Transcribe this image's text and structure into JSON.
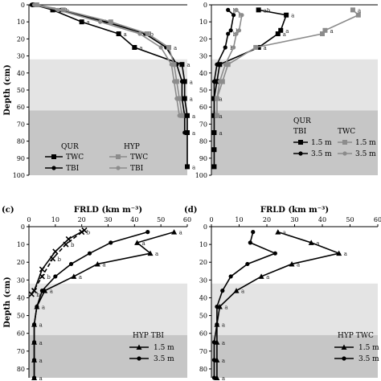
{
  "chart_data": [
    {
      "panel": "",
      "type": "line",
      "ylabel": "Depth (cm)",
      "xlabel": "",
      "ylim": [
        0,
        100
      ],
      "xlim": [
        0,
        60
      ],
      "yticks": [
        "0",
        "10",
        "20",
        "30",
        "40",
        "50",
        "60",
        "70",
        "80",
        "90",
        "100"
      ],
      "xticks": [],
      "bands": [
        {
          "from": 32,
          "to": 62,
          "color": "#e4e4e4"
        },
        {
          "from": 62,
          "to": 100,
          "color": "#c6c6c6"
        }
      ],
      "legend_titles": [
        "QUR",
        "HYP"
      ],
      "series": [
        {
          "name": "TWC",
          "color": "#000000",
          "marker": "square",
          "x": [
            2,
            9,
            20,
            34,
            40,
            58,
            59,
            59,
            60,
            60,
            60
          ],
          "y": [
            0,
            3,
            10,
            17,
            25,
            35,
            45,
            55,
            65,
            75,
            95
          ],
          "labels": [
            "",
            "a",
            "a",
            "a",
            "a",
            "a",
            "a",
            "a",
            "a",
            "a",
            "a"
          ]
        },
        {
          "name": "TBI",
          "color": "#000000",
          "marker": "dot",
          "x": [
            1,
            12,
            29,
            44,
            52,
            56,
            58,
            58,
            59,
            59
          ],
          "y": [
            0,
            3,
            10,
            17,
            25,
            35,
            45,
            55,
            65,
            75
          ],
          "labels": [
            "",
            "b",
            "a",
            "b",
            "",
            "",
            "",
            "",
            "",
            ""
          ]
        },
        {
          "name": "TWC",
          "color": "#8c8c8c",
          "marker": "square",
          "x": [
            3,
            13,
            31,
            45,
            53,
            55,
            56,
            57,
            58
          ],
          "y": [
            0,
            3,
            10,
            17,
            25,
            35,
            45,
            55,
            65
          ],
          "labels": [
            "",
            "",
            "",
            "",
            "a",
            "",
            "",
            "",
            ""
          ]
        },
        {
          "name": "TBI",
          "color": "#8c8c8c",
          "marker": "dot",
          "x": [
            2,
            11,
            27,
            42,
            50,
            54,
            55,
            56,
            57
          ],
          "y": [
            0,
            3,
            10,
            17,
            25,
            35,
            45,
            55,
            65
          ],
          "labels": [
            "",
            "",
            "",
            "",
            "",
            "",
            "",
            "",
            ""
          ]
        }
      ]
    },
    {
      "panel": "",
      "type": "line",
      "ylabel": "",
      "xlabel": "",
      "ylim": [
        0,
        100
      ],
      "xlim": [
        0,
        60
      ],
      "yticks": [
        "0",
        "10",
        "20",
        "30",
        "40",
        "50",
        "60",
        "70",
        "80",
        "90",
        "100"
      ],
      "xticks": [],
      "bands": [
        {
          "from": 32,
          "to": 62,
          "color": "#e4e4e4"
        },
        {
          "from": 62,
          "to": 100,
          "color": "#c6c6c6"
        }
      ],
      "legend_titles": [
        "QUR",
        "TBI",
        "TWC"
      ],
      "series": [
        {
          "name": "1.5 m",
          "color": "#000000",
          "marker": "square",
          "x": [
            17,
            27,
            25,
            24,
            17,
            3,
            2,
            1,
            1,
            1,
            1,
            1
          ],
          "y": [
            3,
            6,
            15,
            17,
            25,
            35,
            45,
            55,
            65,
            75,
            85,
            95
          ],
          "labels": [
            "ab",
            "a",
            "a",
            "a",
            "a",
            "a",
            "a",
            "a",
            "a",
            "a",
            "",
            ""
          ]
        },
        {
          "name": "3.5 m",
          "color": "#000000",
          "marker": "dot",
          "x": [
            6,
            8,
            7,
            6,
            5,
            2,
            1,
            1,
            1
          ],
          "y": [
            3,
            6,
            15,
            17,
            25,
            35,
            45,
            55,
            65
          ],
          "labels": [
            "b",
            "b",
            "b",
            "b",
            "b",
            "",
            "",
            "",
            ""
          ]
        },
        {
          "name": "1.5 m",
          "color": "#8c8c8c",
          "marker": "square",
          "x": [
            51,
            53,
            41,
            40,
            16,
            6,
            4,
            2,
            2
          ],
          "y": [
            3,
            6,
            15,
            17,
            25,
            35,
            45,
            55,
            65
          ],
          "labels": [
            "a",
            "",
            "a",
            "",
            "",
            "",
            "",
            "",
            ""
          ]
        },
        {
          "name": "3.5 m",
          "color": "#8c8c8c",
          "marker": "dot",
          "x": [
            9,
            11,
            10,
            9,
            8,
            5,
            3,
            2,
            2
          ],
          "y": [
            3,
            6,
            15,
            17,
            25,
            35,
            45,
            55,
            65
          ],
          "labels": [
            "",
            "",
            "",
            "",
            "",
            "",
            "",
            "",
            ""
          ]
        }
      ]
    },
    {
      "panel": "(c)",
      "type": "line",
      "ylabel": "Depth (cm)",
      "xlabel": "FRLD (km m⁻³)",
      "ylim": [
        0,
        85
      ],
      "xlim": [
        0,
        60
      ],
      "yticks": [
        "0",
        "10",
        "20",
        "30",
        "40",
        "50",
        "60",
        "70",
        "80"
      ],
      "xticks": [
        "0",
        "10",
        "20",
        "30",
        "40",
        "50",
        "60"
      ],
      "bands": [
        {
          "from": 32,
          "to": 61,
          "color": "#e4e4e4"
        },
        {
          "from": 61,
          "to": 85,
          "color": "#c6c6c6"
        }
      ],
      "legend_titles": [
        "HYP TBI"
      ],
      "series": [
        {
          "name": "1.5 m",
          "color": "#000000",
          "marker": "tri",
          "x": [
            55,
            41,
            46,
            26,
            17,
            6,
            3,
            2,
            2,
            2,
            2
          ],
          "y": [
            3,
            9,
            15,
            21,
            28,
            36,
            45,
            55,
            65,
            75,
            85
          ],
          "labels": [
            "a",
            "a",
            "a",
            "a",
            "a",
            "a",
            "a",
            "a",
            "a",
            "a",
            "a"
          ]
        },
        {
          "name": "3.5 m",
          "color": "#000000",
          "marker": "dot",
          "x": [
            45,
            31,
            23,
            16,
            10,
            5,
            3,
            2,
            2,
            2,
            2
          ],
          "y": [
            3,
            9,
            15,
            21,
            28,
            36,
            45,
            55,
            65,
            75,
            85
          ],
          "labels": [
            "",
            "",
            "",
            "",
            "",
            "",
            "",
            "",
            "",
            "",
            ""
          ]
        },
        {
          "name": "",
          "color": "#000000",
          "marker": "x",
          "dash": true,
          "x": [
            20,
            14,
            9,
            5,
            1
          ],
          "y": [
            3,
            10,
            18,
            28,
            38
          ],
          "labels": [
            "b",
            "b",
            "b",
            "b",
            "b"
          ]
        },
        {
          "name": "",
          "color": "#000000",
          "marker": "x",
          "dash": false,
          "x": [
            21,
            15,
            10,
            5,
            2
          ],
          "y": [
            2,
            7,
            14,
            24,
            36
          ],
          "labels": [
            "",
            "",
            "",
            "",
            ""
          ]
        }
      ]
    },
    {
      "panel": "(d)",
      "type": "line",
      "ylabel": "",
      "xlabel": "FRLD (km m⁻³)",
      "ylim": [
        0,
        85
      ],
      "xlim": [
        0,
        60
      ],
      "yticks": [
        "0",
        "10",
        "20",
        "30",
        "40",
        "50",
        "60",
        "70",
        "80"
      ],
      "xticks": [
        "0",
        "10",
        "20",
        "30",
        "40",
        "50",
        "60"
      ],
      "bands": [
        {
          "from": 32,
          "to": 61,
          "color": "#e4e4e4"
        },
        {
          "from": 61,
          "to": 85,
          "color": "#c6c6c6"
        }
      ],
      "legend_titles": [
        "HYP TWC"
      ],
      "series": [
        {
          "name": "1.5 m",
          "color": "#000000",
          "marker": "tri",
          "x": [
            24,
            36,
            46,
            29,
            18,
            9,
            3,
            2,
            2,
            2,
            2
          ],
          "y": [
            3,
            9,
            15,
            21,
            28,
            36,
            45,
            55,
            65,
            75,
            85
          ],
          "labels": [
            "a",
            "a",
            "a",
            "a",
            "a",
            "a",
            "a",
            "a",
            "a",
            "a",
            "a"
          ]
        },
        {
          "name": "3.5 m",
          "color": "#000000",
          "marker": "dot",
          "x": [
            15,
            14,
            23,
            13,
            7,
            4,
            2,
            2,
            1,
            1,
            1
          ],
          "y": [
            3,
            9,
            15,
            21,
            28,
            36,
            45,
            55,
            65,
            75,
            85
          ],
          "labels": [
            "",
            "",
            "",
            "",
            "",
            "",
            "",
            "",
            "",
            "",
            ""
          ]
        }
      ]
    }
  ]
}
